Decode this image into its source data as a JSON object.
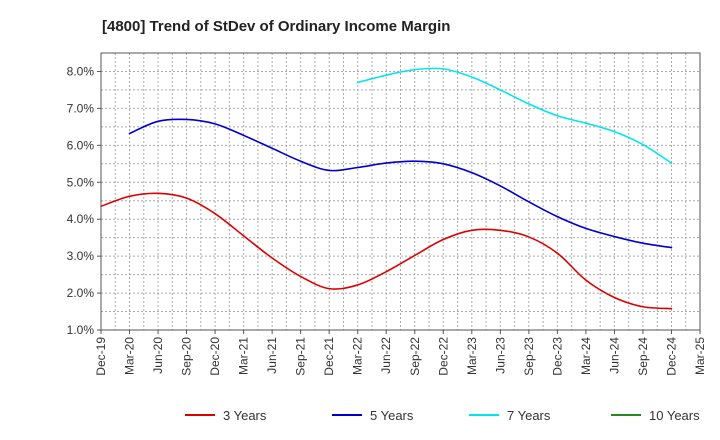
{
  "chart_data": {
    "type": "line",
    "title": "[4800]  Trend of StDev of Ordinary Income Margin",
    "xlabel": "",
    "ylabel": "",
    "x_ticks": [
      "Dec-19",
      "Mar-20",
      "Jun-20",
      "Sep-20",
      "Dec-20",
      "Mar-21",
      "Jun-21",
      "Sep-21",
      "Dec-21",
      "Mar-22",
      "Jun-22",
      "Sep-22",
      "Dec-22",
      "Mar-23",
      "Jun-23",
      "Sep-23",
      "Dec-23",
      "Mar-24",
      "Jun-24",
      "Sep-24",
      "Dec-24",
      "Mar-25"
    ],
    "y_ticks": [
      "1.0%",
      "2.0%",
      "3.0%",
      "4.0%",
      "5.0%",
      "6.0%",
      "7.0%",
      "8.0%"
    ],
    "ylim": [
      1.0,
      8.5
    ],
    "grid": true,
    "legend_position": "bottom",
    "series": [
      {
        "name": "3 Years",
        "color": "#dd0000",
        "x": [
          "Dec-19",
          "Mar-20",
          "Jun-20",
          "Sep-20",
          "Dec-20",
          "Mar-21",
          "Jun-21",
          "Sep-21",
          "Dec-21",
          "Mar-22",
          "Jun-22",
          "Sep-22",
          "Dec-22",
          "Mar-23",
          "Jun-23",
          "Sep-23",
          "Dec-23",
          "Mar-24",
          "Jun-24",
          "Sep-24",
          "Dec-24"
        ],
        "values": [
          4.35,
          4.62,
          4.7,
          4.57,
          4.15,
          3.55,
          2.95,
          2.45,
          2.12,
          2.22,
          2.58,
          3.02,
          3.45,
          3.7,
          3.7,
          3.52,
          3.08,
          2.35,
          1.88,
          1.63,
          1.58
        ]
      },
      {
        "name": "5 Years",
        "color": "#0000cc",
        "x": [
          "Mar-20",
          "Jun-20",
          "Sep-20",
          "Dec-20",
          "Mar-21",
          "Jun-21",
          "Sep-21",
          "Dec-21",
          "Mar-22",
          "Jun-22",
          "Sep-22",
          "Dec-22",
          "Mar-23",
          "Jun-23",
          "Sep-23",
          "Dec-23",
          "Mar-24",
          "Jun-24",
          "Sep-24",
          "Dec-24"
        ],
        "values": [
          6.32,
          6.65,
          6.7,
          6.58,
          6.27,
          5.92,
          5.57,
          5.32,
          5.4,
          5.52,
          5.57,
          5.5,
          5.26,
          4.9,
          4.47,
          4.07,
          3.75,
          3.53,
          3.35,
          3.23
        ]
      },
      {
        "name": "7 Years",
        "color": "#00e5ee",
        "x": [
          "Mar-22",
          "Jun-22",
          "Sep-22",
          "Dec-22",
          "Mar-23",
          "Jun-23",
          "Sep-23",
          "Dec-23",
          "Mar-24",
          "Jun-24",
          "Sep-24",
          "Dec-24"
        ],
        "values": [
          7.7,
          7.9,
          8.05,
          8.07,
          7.85,
          7.5,
          7.12,
          6.8,
          6.6,
          6.37,
          6.02,
          5.52
        ]
      },
      {
        "name": "10 Years",
        "color": "#228b22",
        "x": [],
        "values": []
      }
    ]
  }
}
